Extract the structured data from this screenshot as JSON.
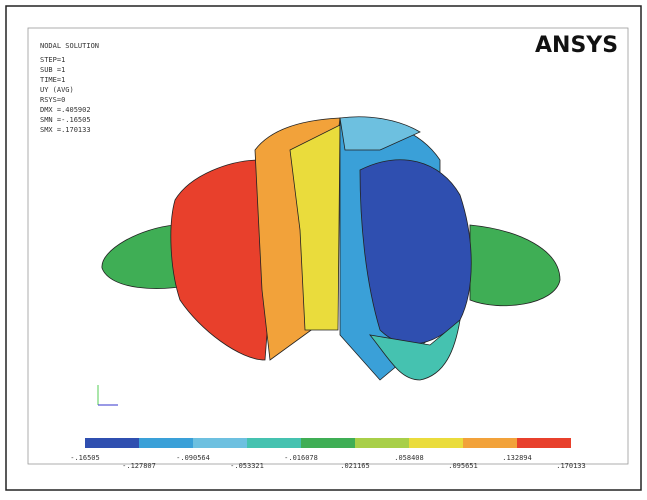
{
  "header": {
    "title": "NODAL SOLUTION",
    "logo": "ANSYS"
  },
  "info": [
    "STEP=1",
    "SUB =1",
    "TIME=1",
    "UY       (AVG)",
    "RSYS=0",
    "DMX =.405902",
    "SMN =-.16505",
    "SMX =.170133"
  ],
  "legend": {
    "top": [
      "-.16505",
      "-.090564",
      "-.016078",
      ".058408",
      ".132894"
    ],
    "bottom": [
      "-.127807",
      "-.053321",
      ".021165",
      ".095651",
      ".170133"
    ]
  }
}
